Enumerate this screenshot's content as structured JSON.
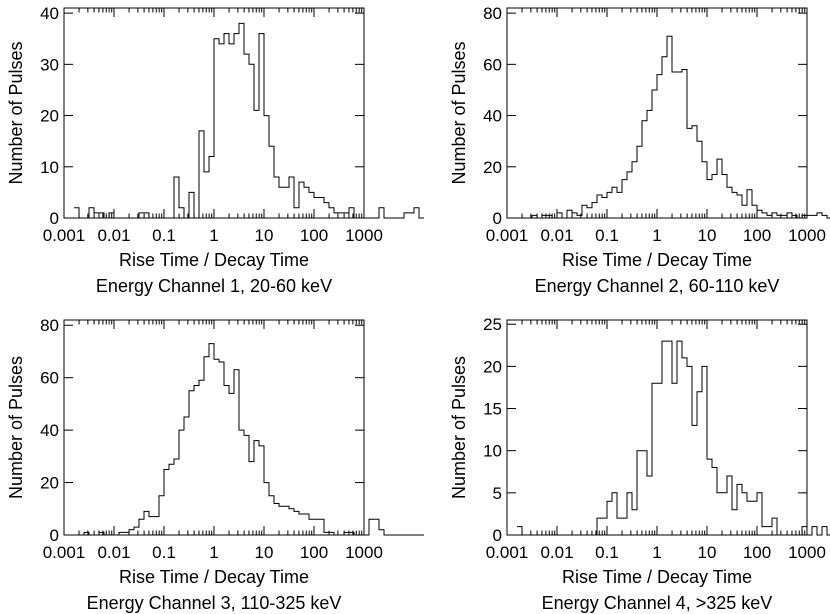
{
  "chart_data": [
    {
      "type": "histogram",
      "title": "Energy Channel 1, 20-60 keV",
      "xlabel": "Rise Time / Decay Time",
      "ylabel": "Number of Pulses",
      "xscale": "log",
      "xlim": [
        0.001,
        1000
      ],
      "ylim": [
        0,
        41
      ],
      "xtick_labels": [
        "0.001",
        "0.01",
        "0.1",
        "1",
        "10",
        "100",
        "1000"
      ],
      "ytick_labels": [
        "0",
        "10",
        "20",
        "30",
        "40"
      ],
      "bin_log10_start": -2.8,
      "bin_log10_width": 0.1,
      "values": [
        2,
        0,
        0,
        2,
        1,
        1,
        0,
        1,
        0,
        0,
        0,
        0,
        0,
        1,
        1,
        0,
        0,
        0,
        0,
        0,
        8,
        2,
        0,
        5,
        0,
        17,
        9,
        12,
        35,
        34,
        36,
        34,
        36,
        38,
        32,
        30,
        21,
        36,
        20,
        14,
        8,
        6,
        6,
        8,
        2,
        7,
        6,
        5,
        4,
        4,
        3,
        2,
        1,
        1,
        1,
        2,
        0,
        0,
        0,
        0,
        0,
        2,
        0,
        0,
        0,
        0,
        1,
        1,
        2,
        0
      ],
      "grid": false,
      "legend": "none"
    },
    {
      "type": "histogram",
      "title": "Energy Channel 2, 60-110 keV",
      "xlabel": "Rise Time / Decay Time",
      "ylabel": "Number of Pulses",
      "xscale": "log",
      "xlim": [
        0.001,
        1000
      ],
      "ylim": [
        0,
        82
      ],
      "xtick_labels": [
        "0.001",
        "0.01",
        "0.1",
        "1",
        "10",
        "100",
        "1000"
      ],
      "ytick_labels": [
        "0",
        "20",
        "40",
        "60",
        "80"
      ],
      "bin_log10_start": -2.8,
      "bin_log10_width": 0.1,
      "values": [
        0,
        0,
        0,
        1,
        0,
        1,
        1,
        0,
        2,
        0,
        3,
        2,
        1,
        5,
        4,
        6,
        9,
        8,
        10,
        12,
        10,
        15,
        18,
        22,
        28,
        38,
        42,
        50,
        56,
        63,
        71,
        57,
        57,
        58,
        35,
        36,
        30,
        22,
        15,
        17,
        23,
        17,
        12,
        10,
        9,
        5,
        11,
        5,
        3,
        2,
        1,
        2,
        1,
        1,
        2,
        1,
        0,
        1,
        1,
        1,
        2,
        1,
        0,
        2,
        0,
        1,
        1,
        0,
        0,
        0
      ],
      "grid": false,
      "legend": "none"
    },
    {
      "type": "histogram",
      "title": "Energy Channel 3, 110-325 keV",
      "xlabel": "Rise Time / Decay Time",
      "ylabel": "Number of Pulses",
      "xscale": "log",
      "xlim": [
        0.001,
        1000
      ],
      "ylim": [
        0,
        82
      ],
      "xtick_labels": [
        "0.001",
        "0.01",
        "0.1",
        "1",
        "10",
        "100",
        "1000"
      ],
      "ytick_labels": [
        "0",
        "20",
        "40",
        "60",
        "80"
      ],
      "bin_log10_start": -2.8,
      "bin_log10_width": 0.1,
      "values": [
        0,
        0,
        1,
        0,
        0,
        1,
        0,
        0,
        0,
        1,
        1,
        2,
        3,
        6,
        9,
        7,
        7,
        15,
        25,
        27,
        29,
        40,
        45,
        55,
        57,
        59,
        68,
        73,
        67,
        66,
        57,
        54,
        63,
        40,
        38,
        28,
        36,
        34,
        20,
        15,
        12,
        11,
        11,
        10,
        9,
        8,
        8,
        6,
        6,
        6,
        1,
        1,
        0,
        0,
        1,
        1,
        0,
        0,
        0,
        6,
        6,
        2,
        0,
        0,
        0,
        0,
        0,
        0,
        0,
        0
      ],
      "grid": false,
      "legend": "none"
    },
    {
      "type": "histogram",
      "title": "Energy Channel 4, >325 keV",
      "xlabel": "Rise Time / Decay Time",
      "ylabel": "Number of Pulses",
      "xscale": "log",
      "xlim": [
        0.001,
        1000
      ],
      "ylim": [
        0,
        25.5
      ],
      "xtick_labels": [
        "0.001",
        "0.01",
        "0.1",
        "1",
        "10",
        "100",
        "1000"
      ],
      "ytick_labels": [
        "0",
        "5",
        "10",
        "15",
        "20",
        "25"
      ],
      "bin_log10_start": -2.8,
      "bin_log10_width": 0.1,
      "values": [
        1,
        0,
        0,
        0,
        0,
        0,
        0,
        0,
        0,
        0,
        0,
        0,
        0,
        0,
        0,
        0,
        2,
        2,
        4,
        5,
        2,
        2,
        5,
        3,
        10,
        10,
        7,
        18,
        18,
        23,
        23,
        18,
        23,
        21,
        20,
        13,
        17,
        20,
        9,
        8,
        5,
        5,
        7,
        3,
        6,
        5,
        4,
        4,
        5,
        1,
        1,
        2,
        0,
        0,
        0,
        0,
        0,
        1,
        0,
        1,
        0,
        1,
        0,
        0,
        0,
        0,
        0,
        0,
        0,
        0
      ],
      "grid": false,
      "legend": "none"
    }
  ]
}
